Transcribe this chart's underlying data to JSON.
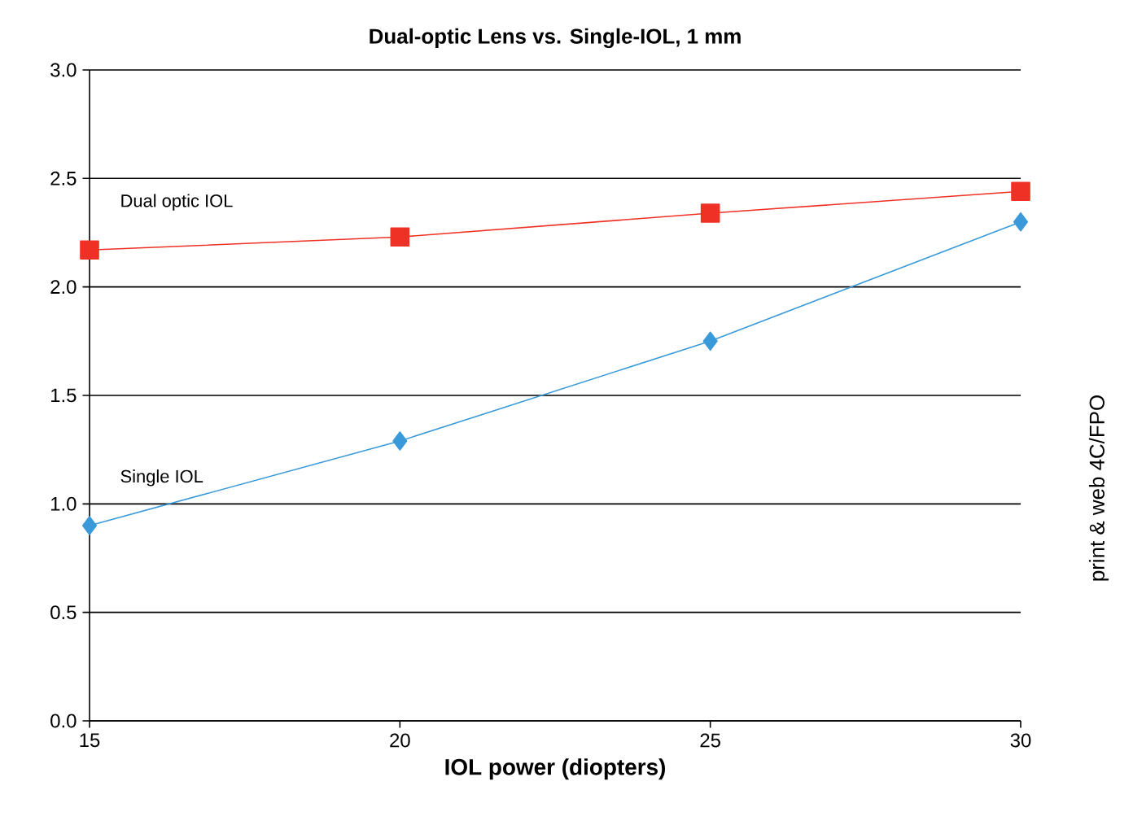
{
  "chart_data": {
    "type": "line",
    "title": "Dual-optic Lens vs. Single-IOL, 1 mm",
    "xlabel": "IOL power (diopters)",
    "x": [
      15,
      20,
      25,
      30
    ],
    "series": [
      {
        "name": "Dual optic IOL",
        "color": "#ee3124",
        "marker": "square",
        "values": [
          2.17,
          2.23,
          2.34,
          2.44
        ]
      },
      {
        "name": "Single IOL",
        "color": "#3a9ad9",
        "marker": "diamond",
        "values": [
          0.9,
          1.29,
          1.75,
          2.3
        ]
      }
    ],
    "xlim": [
      15,
      30
    ],
    "xticks": [
      15,
      20,
      25,
      30
    ],
    "ylim": [
      0,
      3
    ],
    "yticks": [
      {
        "value": 0,
        "label": "0.0"
      },
      {
        "value": 0.5,
        "label": "0.5"
      },
      {
        "value": 1,
        "label": "1.0"
      },
      {
        "value": 1.5,
        "label": "1.5"
      },
      {
        "value": 2,
        "label": "2.0"
      },
      {
        "value": 2.5,
        "label": "2.5"
      },
      {
        "value": 3,
        "label": "3.0"
      }
    ],
    "grid": "y",
    "annotations": [
      "print & web 4C/FPO"
    ]
  }
}
